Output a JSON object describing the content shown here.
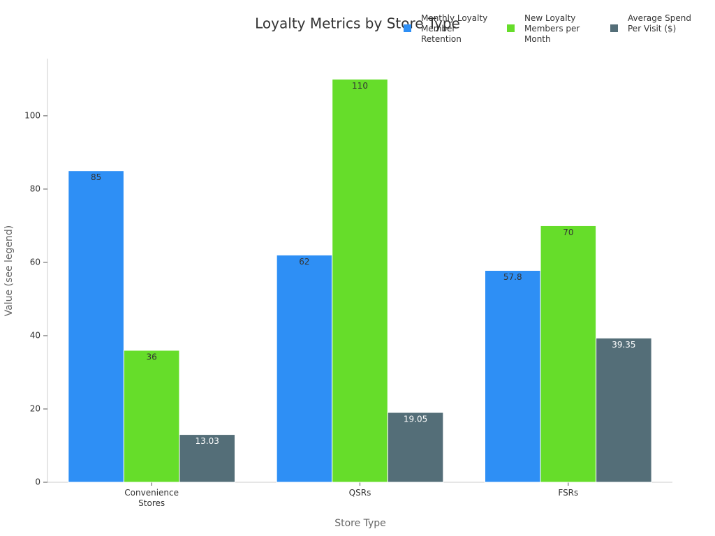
{
  "chart_data": {
    "type": "bar",
    "title": "Loyalty Metrics by Store Type",
    "x_label": "Store Type",
    "y_label": "Value (see legend)",
    "categories": [
      "Convenience Stores",
      "QSRs",
      "FSRs"
    ],
    "series": [
      {
        "name": "Monthly Loyalty Member Retention",
        "color": "#2e8ff5",
        "values": [
          85,
          62,
          57.8
        ]
      },
      {
        "name": "New Loyalty Members per Month",
        "color": "#66dd2a",
        "values": [
          36,
          110,
          70
        ]
      },
      {
        "name": "Average Spend Per Visit ($)",
        "color": "#546e78",
        "values": [
          13.03,
          19.05,
          39.35
        ]
      }
    ],
    "ylim": [
      0,
      115.6
    ],
    "yticks": [
      0,
      20,
      40,
      60,
      80,
      100
    ],
    "grid": false,
    "legend": "top-right"
  }
}
